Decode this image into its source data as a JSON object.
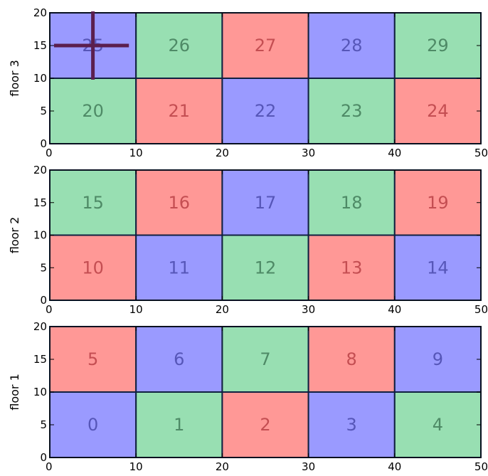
{
  "colors": {
    "red": "#ff9896",
    "blue": "#9a9aff",
    "green": "#98dfb2",
    "red_text": "#c44e52",
    "blue_text": "#5656b8",
    "green_text": "#4e8a66",
    "cell_border": "#102040",
    "marker": "#5b1f4e"
  },
  "chart_data": [
    {
      "type": "heatmap",
      "ylabel": "floor 3",
      "xlim": [
        0,
        50
      ],
      "ylim": [
        0,
        20
      ],
      "x_ticks": [
        "0",
        "10",
        "20",
        "30",
        "40",
        "50"
      ],
      "y_ticks": [
        "0",
        "5",
        "10",
        "15",
        "20"
      ],
      "cells": [
        {
          "label": "20",
          "x0": 0,
          "x1": 10,
          "y0": 0,
          "y1": 10,
          "color": "green"
        },
        {
          "label": "21",
          "x0": 10,
          "x1": 20,
          "y0": 0,
          "y1": 10,
          "color": "red"
        },
        {
          "label": "22",
          "x0": 20,
          "x1": 30,
          "y0": 0,
          "y1": 10,
          "color": "blue"
        },
        {
          "label": "23",
          "x0": 30,
          "x1": 40,
          "y0": 0,
          "y1": 10,
          "color": "green"
        },
        {
          "label": "24",
          "x0": 40,
          "x1": 50,
          "y0": 0,
          "y1": 10,
          "color": "red"
        },
        {
          "label": "25",
          "x0": 0,
          "x1": 10,
          "y0": 10,
          "y1": 20,
          "color": "blue"
        },
        {
          "label": "26",
          "x0": 10,
          "x1": 20,
          "y0": 10,
          "y1": 20,
          "color": "green"
        },
        {
          "label": "27",
          "x0": 20,
          "x1": 30,
          "y0": 10,
          "y1": 20,
          "color": "red"
        },
        {
          "label": "28",
          "x0": 30,
          "x1": 40,
          "y0": 10,
          "y1": 20,
          "color": "blue"
        },
        {
          "label": "29",
          "x0": 40,
          "x1": 50,
          "y0": 10,
          "y1": 20,
          "color": "green"
        }
      ],
      "marker": {
        "x": 5,
        "y": 15,
        "x_extent": [
          0,
          10
        ],
        "y_extent": [
          10,
          20
        ]
      }
    },
    {
      "type": "heatmap",
      "ylabel": "floor 2",
      "xlim": [
        0,
        50
      ],
      "ylim": [
        0,
        20
      ],
      "x_ticks": [
        "0",
        "10",
        "20",
        "30",
        "40",
        "50"
      ],
      "y_ticks": [
        "0",
        "5",
        "10",
        "15",
        "20"
      ],
      "cells": [
        {
          "label": "10",
          "x0": 0,
          "x1": 10,
          "y0": 0,
          "y1": 10,
          "color": "red"
        },
        {
          "label": "11",
          "x0": 10,
          "x1": 20,
          "y0": 0,
          "y1": 10,
          "color": "blue"
        },
        {
          "label": "12",
          "x0": 20,
          "x1": 30,
          "y0": 0,
          "y1": 10,
          "color": "green"
        },
        {
          "label": "13",
          "x0": 30,
          "x1": 40,
          "y0": 0,
          "y1": 10,
          "color": "red"
        },
        {
          "label": "14",
          "x0": 40,
          "x1": 50,
          "y0": 0,
          "y1": 10,
          "color": "blue"
        },
        {
          "label": "15",
          "x0": 0,
          "x1": 10,
          "y0": 10,
          "y1": 20,
          "color": "green"
        },
        {
          "label": "16",
          "x0": 10,
          "x1": 20,
          "y0": 10,
          "y1": 20,
          "color": "red"
        },
        {
          "label": "17",
          "x0": 20,
          "x1": 30,
          "y0": 10,
          "y1": 20,
          "color": "blue"
        },
        {
          "label": "18",
          "x0": 30,
          "x1": 40,
          "y0": 10,
          "y1": 20,
          "color": "green"
        },
        {
          "label": "19",
          "x0": 40,
          "x1": 50,
          "y0": 10,
          "y1": 20,
          "color": "red"
        }
      ]
    },
    {
      "type": "heatmap",
      "ylabel": "floor 1",
      "xlim": [
        0,
        50
      ],
      "ylim": [
        0,
        20
      ],
      "x_ticks": [
        "0",
        "10",
        "20",
        "30",
        "40",
        "50"
      ],
      "y_ticks": [
        "0",
        "5",
        "10",
        "15",
        "20"
      ],
      "cells": [
        {
          "label": "0",
          "x0": 0,
          "x1": 10,
          "y0": 0,
          "y1": 10,
          "color": "blue"
        },
        {
          "label": "1",
          "x0": 10,
          "x1": 20,
          "y0": 0,
          "y1": 10,
          "color": "green"
        },
        {
          "label": "2",
          "x0": 20,
          "x1": 30,
          "y0": 0,
          "y1": 10,
          "color": "red"
        },
        {
          "label": "3",
          "x0": 30,
          "x1": 40,
          "y0": 0,
          "y1": 10,
          "color": "blue"
        },
        {
          "label": "4",
          "x0": 40,
          "x1": 50,
          "y0": 0,
          "y1": 10,
          "color": "green"
        },
        {
          "label": "5",
          "x0": 0,
          "x1": 10,
          "y0": 10,
          "y1": 20,
          "color": "red"
        },
        {
          "label": "6",
          "x0": 10,
          "x1": 20,
          "y0": 10,
          "y1": 20,
          "color": "blue"
        },
        {
          "label": "7",
          "x0": 20,
          "x1": 30,
          "y0": 10,
          "y1": 20,
          "color": "green"
        },
        {
          "label": "8",
          "x0": 30,
          "x1": 40,
          "y0": 10,
          "y1": 20,
          "color": "red"
        },
        {
          "label": "9",
          "x0": 40,
          "x1": 50,
          "y0": 10,
          "y1": 20,
          "color": "blue"
        }
      ]
    }
  ]
}
